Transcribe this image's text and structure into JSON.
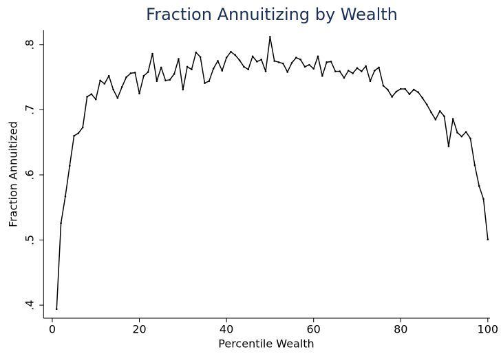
{
  "chart_data": {
    "type": "line",
    "title": "Fraction Annuitizing by Wealth",
    "x_label": "Percentile Wealth",
    "y_label": "Fraction Annuitized",
    "x": [
      1,
      2,
      3,
      4,
      5,
      6,
      7,
      8,
      9,
      10,
      11,
      12,
      13,
      14,
      15,
      16,
      17,
      18,
      19,
      20,
      21,
      22,
      23,
      24,
      25,
      26,
      27,
      28,
      29,
      30,
      31,
      32,
      33,
      34,
      35,
      36,
      37,
      38,
      39,
      40,
      41,
      42,
      43,
      44,
      45,
      46,
      47,
      48,
      49,
      50,
      51,
      52,
      53,
      54,
      55,
      56,
      57,
      58,
      59,
      60,
      61,
      62,
      63,
      64,
      65,
      66,
      67,
      68,
      69,
      70,
      71,
      72,
      73,
      74,
      75,
      76,
      77,
      78,
      79,
      80,
      81,
      82,
      83,
      84,
      85,
      86,
      87,
      88,
      89,
      90,
      91,
      92,
      93,
      94,
      95,
      96,
      97,
      98,
      99,
      100
    ],
    "values": [
      0.394,
      0.526,
      0.567,
      0.614,
      0.66,
      0.664,
      0.673,
      0.72,
      0.724,
      0.716,
      0.745,
      0.74,
      0.752,
      0.731,
      0.718,
      0.735,
      0.75,
      0.756,
      0.757,
      0.725,
      0.752,
      0.758,
      0.786,
      0.744,
      0.765,
      0.745,
      0.746,
      0.755,
      0.778,
      0.731,
      0.766,
      0.762,
      0.788,
      0.781,
      0.741,
      0.744,
      0.763,
      0.775,
      0.76,
      0.78,
      0.789,
      0.784,
      0.776,
      0.766,
      0.762,
      0.782,
      0.774,
      0.777,
      0.759,
      0.812,
      0.775,
      0.773,
      0.771,
      0.758,
      0.772,
      0.78,
      0.777,
      0.766,
      0.769,
      0.763,
      0.782,
      0.752,
      0.773,
      0.774,
      0.759,
      0.759,
      0.749,
      0.76,
      0.756,
      0.764,
      0.759,
      0.767,
      0.744,
      0.76,
      0.765,
      0.737,
      0.731,
      0.72,
      0.728,
      0.732,
      0.732,
      0.724,
      0.731,
      0.727,
      0.718,
      0.708,
      0.696,
      0.685,
      0.698,
      0.69,
      0.644,
      0.686,
      0.665,
      0.659,
      0.666,
      0.656,
      0.615,
      0.583,
      0.563,
      0.501
    ],
    "color": "#000000",
    "xlim": [
      -2,
      100.5
    ],
    "xticks": [
      0,
      20,
      40,
      60,
      80,
      100
    ],
    "ylim": [
      0.38,
      0.822
    ],
    "yticks": [
      {
        "value": 0.4,
        "label": ".4"
      },
      {
        "value": 0.5,
        "label": ".5"
      },
      {
        "value": 0.6,
        "label": ".6"
      },
      {
        "value": 0.7,
        "label": ".7"
      },
      {
        "value": 0.8,
        "label": ".8"
      }
    ],
    "grid": false,
    "markers": true
  }
}
